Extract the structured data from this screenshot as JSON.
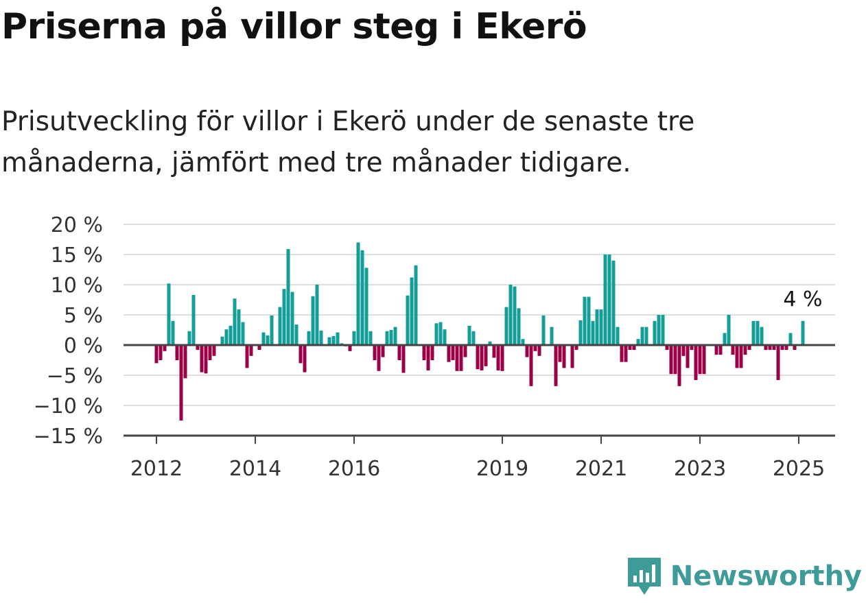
{
  "title": "Priserna på villor steg i Ekerö",
  "subtitle": "Prisutveckling för villor i Ekerö under de senaste tre månaderna, jämfört med tre månader tidigare.",
  "brand": {
    "name": "Newsworthy",
    "icon": "bar-chart-flag-icon",
    "color": "#3e9b98"
  },
  "colors": {
    "positive": "#139e98",
    "negative": "#990048",
    "grid": "#dddddd",
    "axis": "#444444"
  },
  "chart_data": {
    "type": "bar",
    "x_start": "2012-01",
    "x_frequency": "monthly",
    "ylim": [
      -15,
      20
    ],
    "yticks": [
      {
        "value": 20,
        "label": "20 %"
      },
      {
        "value": 15,
        "label": "15 %"
      },
      {
        "value": 10,
        "label": "10 %"
      },
      {
        "value": 5,
        "label": "5 %"
      },
      {
        "value": 0,
        "label": "0 %"
      },
      {
        "value": -5,
        "label": "−5 %"
      },
      {
        "value": -10,
        "label": "−10 %"
      },
      {
        "value": -15,
        "label": "−15 %"
      }
    ],
    "xticks": [
      {
        "date": "2012-01",
        "label": "2012"
      },
      {
        "date": "2014-01",
        "label": "2014"
      },
      {
        "date": "2016-01",
        "label": "2016"
      },
      {
        "date": "2019-01",
        "label": "2019"
      },
      {
        "date": "2021-01",
        "label": "2021"
      },
      {
        "date": "2023-01",
        "label": "2023"
      },
      {
        "date": "2025-01",
        "label": "2025"
      }
    ],
    "annotation": {
      "label": "4 %",
      "date": "2025-01",
      "value": 4
    },
    "values": [
      -3,
      -2.5,
      -1,
      10.2,
      4,
      -2.5,
      -12.5,
      -5.5,
      2.3,
      8.3,
      -0.8,
      -4.5,
      -4.7,
      -2.5,
      -1.8,
      0,
      1.4,
      2.6,
      3.2,
      7.7,
      5.9,
      3.8,
      -3.8,
      -1.8,
      0,
      -0.8,
      2.1,
      1.6,
      4.9,
      0,
      6.3,
      9.3,
      15.9,
      8.8,
      3.4,
      -3,
      -4.5,
      2.3,
      8.1,
      10,
      2.4,
      0,
      1.3,
      1.5,
      2.1,
      0.3,
      -0.2,
      -1,
      2.3,
      17,
      15.7,
      12.8,
      2.3,
      -2.5,
      -4.3,
      -2,
      2.3,
      2.5,
      3,
      -2.5,
      -4.6,
      8.2,
      11.2,
      13.2,
      0,
      -2.5,
      -4.2,
      -2.5,
      3.6,
      3.8,
      2.6,
      -2.8,
      -2.5,
      -4.3,
      -4.3,
      -2,
      3.2,
      2.3,
      -4,
      -4.2,
      -3.5,
      0.6,
      -2.1,
      -4.2,
      -4.3,
      6.3,
      10,
      9.7,
      6.1,
      1,
      -2,
      -6.8,
      -1,
      -1.8,
      4.9,
      0,
      3,
      -6.8,
      -2.8,
      -3.8,
      0,
      -3.8,
      -0.8,
      4.1,
      8,
      8,
      4,
      5.9,
      5.9,
      15,
      15,
      14,
      3,
      -2.8,
      -2.8,
      -0.8,
      -0.8,
      1,
      3,
      3,
      0,
      4,
      5,
      5,
      -0.8,
      -4.8,
      -4.8,
      -6.8,
      -1.8,
      -3.8,
      -0.8,
      -5.8,
      -4.8,
      -4.8,
      0,
      0,
      -1.6,
      -1.6,
      2,
      5,
      -1.6,
      -3.8,
      -3.8,
      -1.6,
      -0.8,
      4,
      4,
      3,
      -0.8,
      -0.8,
      -0.8,
      -5.8,
      -0.8,
      -0.8,
      2,
      -0.8,
      0,
      4
    ]
  }
}
